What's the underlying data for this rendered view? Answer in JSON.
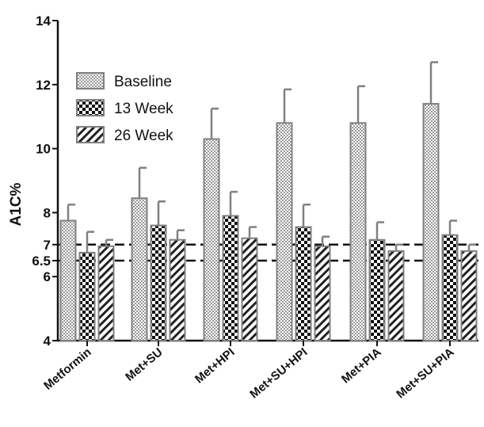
{
  "chart_data": {
    "type": "bar",
    "title": "",
    "xlabel": "",
    "ylabel": "A1C%",
    "ylim": [
      4,
      14
    ],
    "y_ticks": [
      {
        "value": 4,
        "label": "4"
      },
      {
        "value": 6,
        "label": "6"
      },
      {
        "value": 6.5,
        "label": "6.5"
      },
      {
        "value": 7,
        "label": "7"
      },
      {
        "value": 8,
        "label": "8"
      },
      {
        "value": 10,
        "label": "10"
      },
      {
        "value": 12,
        "label": "12"
      },
      {
        "value": 14,
        "label": "14"
      }
    ],
    "reference_lines": [
      7,
      6.5
    ],
    "categories": [
      "Metformin",
      "Met+SU",
      "Met+HPI",
      "Met+SU+HPI",
      "Met+PIA",
      "Met+SU+PIA"
    ],
    "series": [
      {
        "name": "Baseline",
        "pattern": "dots",
        "values": [
          7.75,
          8.45,
          10.3,
          10.8,
          10.8,
          11.4
        ],
        "errors": [
          0.5,
          0.95,
          0.95,
          1.05,
          1.15,
          1.3
        ]
      },
      {
        "name": "13 Week",
        "pattern": "checker",
        "values": [
          6.75,
          7.6,
          7.9,
          7.55,
          7.15,
          7.3
        ],
        "errors": [
          0.65,
          0.75,
          0.75,
          0.7,
          0.55,
          0.45
        ]
      },
      {
        "name": "26 Week",
        "pattern": "hatch",
        "values": [
          6.95,
          7.15,
          7.2,
          6.95,
          6.8,
          6.8
        ],
        "errors": [
          0.2,
          0.3,
          0.35,
          0.3,
          0.2,
          0.2
        ]
      }
    ],
    "legend": {
      "position": "top-left",
      "entries": [
        "Baseline",
        "13 Week",
        "26 Week"
      ]
    },
    "grid": false,
    "colors": {
      "bar_stroke": "#808080",
      "error_bar": "#808080",
      "axis": "#111111",
      "reference_line": "#111111"
    }
  }
}
